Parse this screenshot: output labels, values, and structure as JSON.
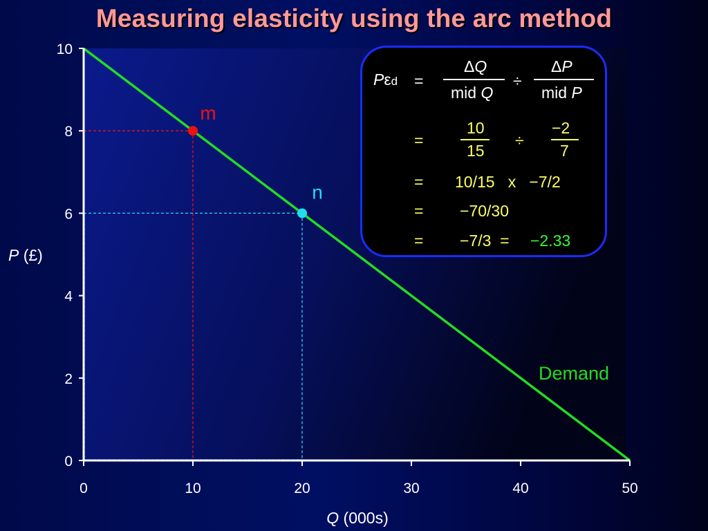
{
  "title": "Measuring elasticity using the arc method",
  "chart_data": {
    "type": "line",
    "xlabel_var": "Q",
    "xlabel_unit": "(000s)",
    "ylabel_var": "P",
    "ylabel_unit": "(£)",
    "xlim": [
      0,
      50
    ],
    "ylim": [
      0,
      10
    ],
    "x_ticks": [
      0,
      10,
      20,
      30,
      40,
      50
    ],
    "y_ticks": [
      0,
      2,
      4,
      6,
      8,
      10
    ],
    "series": [
      {
        "name": "Demand",
        "x": [
          0,
          50
        ],
        "y": [
          10,
          0
        ],
        "color": "#22dd22"
      }
    ],
    "points": [
      {
        "label": "m",
        "x": 10,
        "y": 8,
        "color": "#ee1111"
      },
      {
        "label": "n",
        "x": 20,
        "y": 6,
        "color": "#22ddee"
      }
    ]
  },
  "formula": {
    "lhs_P": "P",
    "lhs_eps": "ε",
    "lhs_sub": "d",
    "eq": "=",
    "row1_num1_delta": "Δ",
    "row1_num1_var": "Q",
    "row1_den1_text": "mid ",
    "row1_den1_var": "Q",
    "div": "÷",
    "row1_num2_delta": "Δ",
    "row1_num2_var": "P",
    "row1_den2_text": "mid ",
    "row1_den2_var": "P",
    "row2_num1": "10",
    "row2_den1": "15",
    "row2_num2": "−2",
    "row2_den2": "7",
    "row3": "10/15   x   −7/2",
    "row4": "−70/30",
    "row5_a": "−7/3  =",
    "row5_b": "−2.33"
  },
  "colors": {
    "title": "#ff9999",
    "demand": "#22dd22",
    "point_m": "#ee1111",
    "point_n": "#22ddee",
    "formula_border": "#1a2cff",
    "formula_values": "#ffff66",
    "result": "#33ff33"
  }
}
